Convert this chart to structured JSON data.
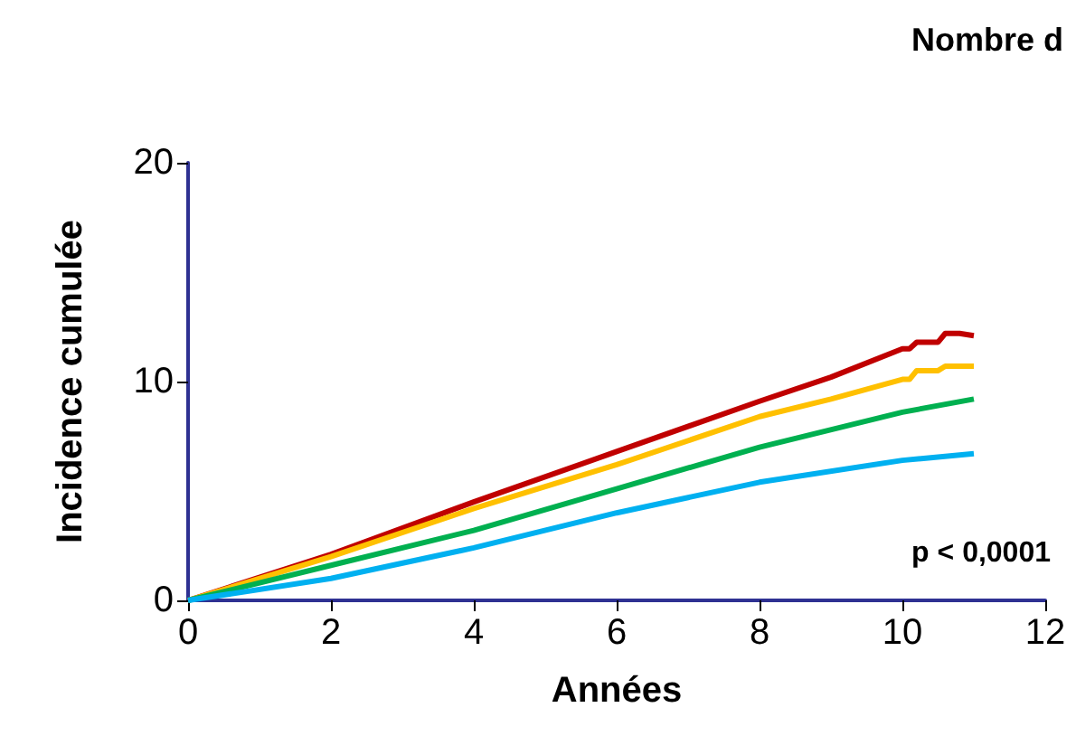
{
  "chart_data": {
    "type": "line",
    "title": "Nombre d",
    "xlabel": "Années",
    "ylabel": "Incidence cumulée",
    "annotations": [
      "p < 0,0001"
    ],
    "xlim": [
      0,
      12
    ],
    "xticks": [
      0,
      2,
      4,
      6,
      8,
      10,
      12
    ],
    "ylim": [
      0,
      20
    ],
    "yticks": [
      0,
      10,
      20
    ],
    "grid": false,
    "marker": "none",
    "line_style": "solid",
    "series": [
      {
        "color": "#c00000",
        "x": [
          0,
          2,
          4,
          6,
          8,
          9,
          10,
          10.1,
          10.2,
          10.5,
          10.6,
          10.8,
          11
        ],
        "values": [
          0,
          2.1,
          4.5,
          6.8,
          9.1,
          10.2,
          11.5,
          11.5,
          11.8,
          11.8,
          12.2,
          12.2,
          12.1
        ]
      },
      {
        "color": "#ffc000",
        "x": [
          0,
          2,
          4,
          6,
          8,
          9,
          10,
          10.1,
          10.2,
          10.5,
          10.6,
          11
        ],
        "values": [
          0,
          2.0,
          4.2,
          6.2,
          8.4,
          9.2,
          10.1,
          10.1,
          10.5,
          10.5,
          10.7,
          10.7
        ]
      },
      {
        "color": "#00b050",
        "x": [
          0,
          2,
          4,
          6,
          8,
          10,
          11
        ],
        "values": [
          0,
          1.6,
          3.2,
          5.1,
          7.0,
          8.6,
          9.2
        ]
      },
      {
        "color": "#00b0f0",
        "x": [
          0,
          2,
          4,
          6,
          8,
          10,
          11
        ],
        "values": [
          0,
          1.0,
          2.4,
          4.0,
          5.4,
          6.4,
          6.7
        ]
      }
    ]
  }
}
